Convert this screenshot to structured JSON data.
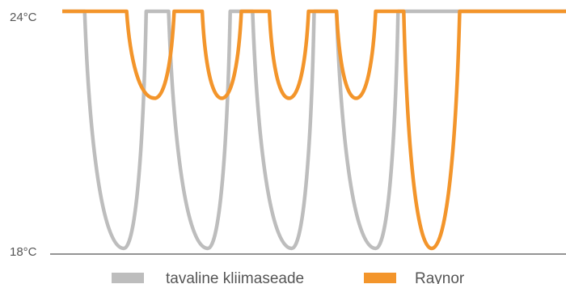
{
  "chart_data": {
    "type": "line",
    "title": "",
    "xlabel": "",
    "ylabel": "",
    "ylim": [
      18,
      24
    ],
    "y_ticks": [
      {
        "value": 18,
        "label": "18°C"
      },
      {
        "value": 24,
        "label": "24°C"
      }
    ],
    "grid": false,
    "legend_placement": "bottom",
    "series": [
      {
        "name": "tavaline kliimaseade",
        "color": "#bdbdbd",
        "x": [
          0,
          8,
          22,
          30,
          34,
          38,
          52,
          60,
          64,
          68,
          82,
          90,
          94,
          98,
          112,
          120,
          124,
          128,
          142,
          150,
          154,
          180
        ],
        "y": [
          24,
          24,
          18,
          24,
          24,
          24,
          18,
          24,
          24,
          24,
          18,
          24,
          24,
          24,
          18,
          24,
          24,
          24,
          24,
          24,
          24,
          24
        ]
      },
      {
        "name": "Raynor",
        "color": "#f3952b",
        "x": [
          0,
          23,
          33,
          40,
          47,
          50,
          57,
          64,
          71,
          74,
          81,
          88,
          95,
          98,
          105,
          112,
          119,
          122,
          132,
          142,
          150,
          180
        ],
        "y": [
          24,
          24,
          21.8,
          24,
          24,
          24,
          21.8,
          24,
          24,
          24,
          21.8,
          24,
          24,
          24,
          21.8,
          24,
          24,
          24,
          18,
          24,
          24,
          24
        ]
      }
    ]
  }
}
